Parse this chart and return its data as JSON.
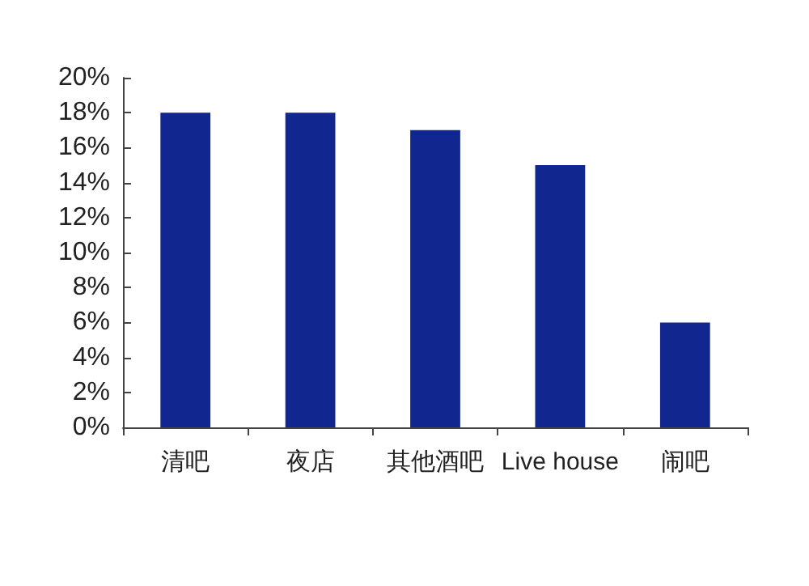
{
  "chart_data": {
    "type": "bar",
    "categories": [
      "清吧",
      "夜店",
      "其他酒吧",
      "Live house",
      "闹吧"
    ],
    "values": [
      18,
      18,
      17,
      15,
      6
    ],
    "color": "#12268f",
    "ylim": [
      0,
      20
    ],
    "yticks": [
      {
        "value": 0,
        "label": "0%"
      },
      {
        "value": 2,
        "label": "2%"
      },
      {
        "value": 4,
        "label": "4%"
      },
      {
        "value": 6,
        "label": "6%"
      },
      {
        "value": 8,
        "label": "8%"
      },
      {
        "value": 10,
        "label": "10%"
      },
      {
        "value": 12,
        "label": "12%"
      },
      {
        "value": 14,
        "label": "14%"
      },
      {
        "value": 16,
        "label": "16%"
      },
      {
        "value": 18,
        "label": "18%"
      },
      {
        "value": 20,
        "label": "20%"
      }
    ],
    "grid": false
  }
}
